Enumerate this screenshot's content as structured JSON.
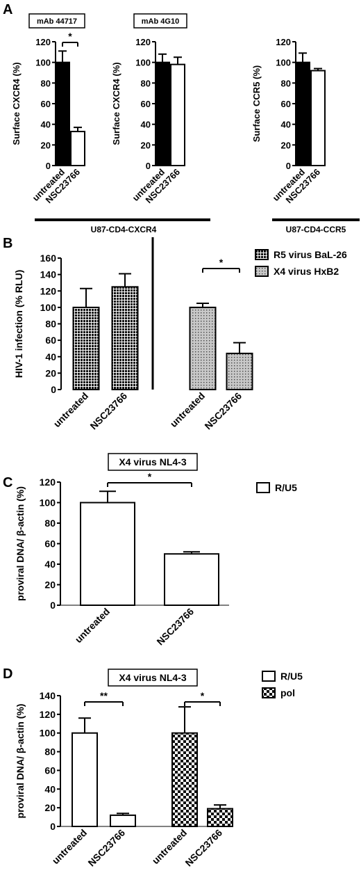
{
  "panels": [
    {
      "id": "A",
      "letter": "A",
      "subcharts": [
        {
          "box_label": "mAb 44717",
          "ylabel": "Surface CXCR4 (%)",
          "ylim": [
            0,
            120
          ],
          "yticks": [
            0,
            20,
            40,
            60,
            80,
            100,
            120
          ],
          "categories": [
            "untreated",
            "NSC23766"
          ],
          "values": [
            100,
            33
          ],
          "errors": [
            11,
            4
          ],
          "fills": [
            "solid",
            "white"
          ],
          "sig": {
            "label": "*",
            "from": 0,
            "to": 1
          }
        },
        {
          "box_label": "mAb 4G10",
          "ylabel": "Surface CXCR4 (%)",
          "ylim": [
            0,
            120
          ],
          "yticks": [
            0,
            20,
            40,
            60,
            80,
            100,
            120
          ],
          "categories": [
            "untreated",
            "NSC23766"
          ],
          "values": [
            100,
            98
          ],
          "errors": [
            8,
            7
          ],
          "fills": [
            "solid",
            "white"
          ]
        },
        {
          "ylabel": "Surface CCR5 (%)",
          "ylim": [
            0,
            120
          ],
          "yticks": [
            0,
            20,
            40,
            60,
            80,
            100,
            120
          ],
          "categories": [
            "untreated",
            "NSC23766"
          ],
          "values": [
            100,
            92
          ],
          "errors": [
            9,
            2
          ],
          "fills": [
            "solid",
            "white"
          ]
        }
      ],
      "group_labels": [
        "U87-CD4-CXCR4",
        "U87-CD4-CCR5"
      ]
    },
    {
      "id": "B",
      "letter": "B",
      "ylabel": "HIV-1 infection (% RLU)",
      "ylim": [
        0,
        160
      ],
      "yticks": [
        0,
        20,
        40,
        60,
        80,
        100,
        120,
        140,
        160
      ],
      "categories": [
        "untreated",
        "NSC23766",
        "untreated",
        "NSC23766"
      ],
      "values": [
        100,
        125,
        100,
        44
      ],
      "errors": [
        23,
        16,
        5,
        13
      ],
      "fills": [
        "dense-dots",
        "dense-dots",
        "light-dots",
        "light-dots"
      ],
      "sig": {
        "label": "*",
        "from": 2,
        "to": 3
      },
      "legend": [
        {
          "label": "R5 virus BaL-26",
          "fill": "dense-dots"
        },
        {
          "label": "X4 virus HxB2",
          "fill": "light-dots"
        }
      ]
    },
    {
      "id": "C",
      "letter": "C",
      "box_label": "X4 virus NL4-3",
      "ylabel": "proviral DNA/ β-actin (%)",
      "ylim": [
        0,
        120
      ],
      "yticks": [
        0,
        20,
        40,
        60,
        80,
        100,
        120
      ],
      "categories": [
        "untreated",
        "NSC23766"
      ],
      "values": [
        100,
        50
      ],
      "errors": [
        11,
        2
      ],
      "fills": [
        "white",
        "white"
      ],
      "sig": {
        "label": "*",
        "from": 0,
        "to": 1
      },
      "legend": [
        {
          "label": "R/U5",
          "fill": "white"
        }
      ]
    },
    {
      "id": "D",
      "letter": "D",
      "box_label": "X4 virus NL4-3",
      "ylabel": "proviral DNA/ β-actin (%)",
      "ylim": [
        0,
        140
      ],
      "yticks": [
        0,
        20,
        40,
        60,
        80,
        100,
        120,
        140
      ],
      "categories": [
        "untreated",
        "NSC23766",
        "untreated",
        "NSC23766"
      ],
      "values": [
        100,
        12,
        100,
        19
      ],
      "errors": [
        16,
        2,
        28,
        4
      ],
      "fills": [
        "white",
        "white",
        "checker",
        "checker"
      ],
      "sigs": [
        {
          "label": "**",
          "from": 0,
          "to": 1
        },
        {
          "label": "*",
          "from": 2,
          "to": 3
        }
      ],
      "legend": [
        {
          "label": "R/U5",
          "fill": "white"
        },
        {
          "label": "pol",
          "fill": "checker"
        }
      ]
    }
  ],
  "chart_data": [
    {
      "type": "bar",
      "title": "mAb 44717",
      "ylabel": "Surface CXCR4 (%)",
      "ylim": [
        0,
        120
      ],
      "categories": [
        "untreated",
        "NSC23766"
      ],
      "values": [
        100,
        33
      ],
      "errors": [
        11,
        4
      ],
      "group": "U87-CD4-CXCR4",
      "annotations": [
        "*"
      ]
    },
    {
      "type": "bar",
      "title": "mAb 4G10",
      "ylabel": "Surface CXCR4 (%)",
      "ylim": [
        0,
        120
      ],
      "categories": [
        "untreated",
        "NSC23766"
      ],
      "values": [
        100,
        98
      ],
      "errors": [
        8,
        7
      ],
      "group": "U87-CD4-CXCR4"
    },
    {
      "type": "bar",
      "ylabel": "Surface CCR5 (%)",
      "ylim": [
        0,
        120
      ],
      "categories": [
        "untreated",
        "NSC23766"
      ],
      "values": [
        100,
        92
      ],
      "errors": [
        9,
        2
      ],
      "group": "U87-CD4-CCR5"
    },
    {
      "type": "bar",
      "ylabel": "HIV-1 infection (% RLU)",
      "ylim": [
        0,
        160
      ],
      "categories": [
        "untreated",
        "NSC23766"
      ],
      "series": [
        {
          "name": "R5 virus BaL-26",
          "values": [
            100,
            125
          ],
          "errors": [
            23,
            16
          ]
        },
        {
          "name": "X4 virus HxB2",
          "values": [
            100,
            44
          ],
          "errors": [
            5,
            13
          ]
        }
      ],
      "annotations": [
        "*"
      ],
      "legend": "top-right"
    },
    {
      "type": "bar",
      "title": "X4 virus NL4-3",
      "ylabel": "proviral DNA/ β-actin (%)",
      "ylim": [
        0,
        120
      ],
      "categories": [
        "untreated",
        "NSC23766"
      ],
      "series": [
        {
          "name": "R/U5",
          "values": [
            100,
            50
          ],
          "errors": [
            11,
            2
          ]
        }
      ],
      "annotations": [
        "*"
      ],
      "legend": "top-right"
    },
    {
      "type": "bar",
      "title": "X4 virus NL4-3",
      "ylabel": "proviral DNA/ β-actin (%)",
      "ylim": [
        0,
        140
      ],
      "categories": [
        "untreated",
        "NSC23766"
      ],
      "series": [
        {
          "name": "R/U5",
          "values": [
            100,
            12
          ],
          "errors": [
            16,
            2
          ]
        },
        {
          "name": "pol",
          "values": [
            100,
            19
          ],
          "errors": [
            28,
            4
          ]
        }
      ],
      "annotations": [
        "**",
        "*"
      ],
      "legend": "top-right"
    }
  ]
}
